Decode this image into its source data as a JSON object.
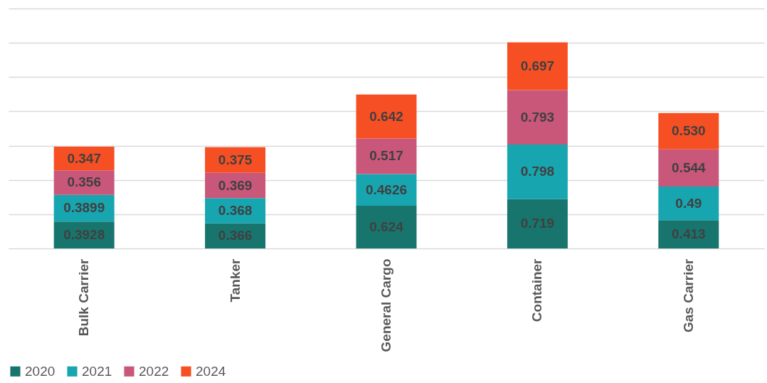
{
  "chart_data": {
    "type": "bar",
    "stacked": true,
    "categories": [
      "Bulk Carrier",
      "Tanker",
      "General Cargo",
      "Container",
      "Gas Carrier"
    ],
    "series": [
      {
        "name": "2020",
        "color": "#17756e",
        "values": [
          0.3928,
          0.366,
          0.624,
          0.719,
          0.413
        ],
        "value_labels": [
          "0.3928",
          "0.366",
          "0.624",
          "0.719",
          "0.413"
        ]
      },
      {
        "name": "2021",
        "color": "#17a5b0",
        "values": [
          0.3899,
          0.368,
          0.4626,
          0.798,
          0.49
        ],
        "value_labels": [
          "0.3899",
          "0.368",
          "0.4626",
          "0.798",
          "0.49"
        ]
      },
      {
        "name": "2022",
        "color": "#c9577a",
        "values": [
          0.356,
          0.369,
          0.517,
          0.793,
          0.544
        ],
        "value_labels": [
          "0.356",
          "0.369",
          "0.517",
          "0.793",
          "0.544"
        ]
      },
      {
        "name": "2024",
        "color": "#f74f24",
        "values": [
          0.347,
          0.375,
          0.642,
          0.697,
          0.53
        ],
        "value_labels": [
          "0.347",
          "0.375",
          "0.642",
          "0.697",
          "0.530"
        ]
      }
    ],
    "ylim": [
      0,
      3.5
    ],
    "yticks": [
      {
        "value": 0,
        "label": null
      },
      {
        "value": 0.5,
        "label": null
      },
      {
        "value": 1,
        "label": null
      },
      {
        "value": 1.5,
        "label": null
      },
      {
        "value": 2,
        "label": null
      },
      {
        "value": 2.5,
        "label": null
      },
      {
        "value": 3,
        "label": null
      },
      {
        "value": 3.5,
        "label": null
      }
    ],
    "grid": "y",
    "tick_labels": "x",
    "legend": "bottom"
  }
}
